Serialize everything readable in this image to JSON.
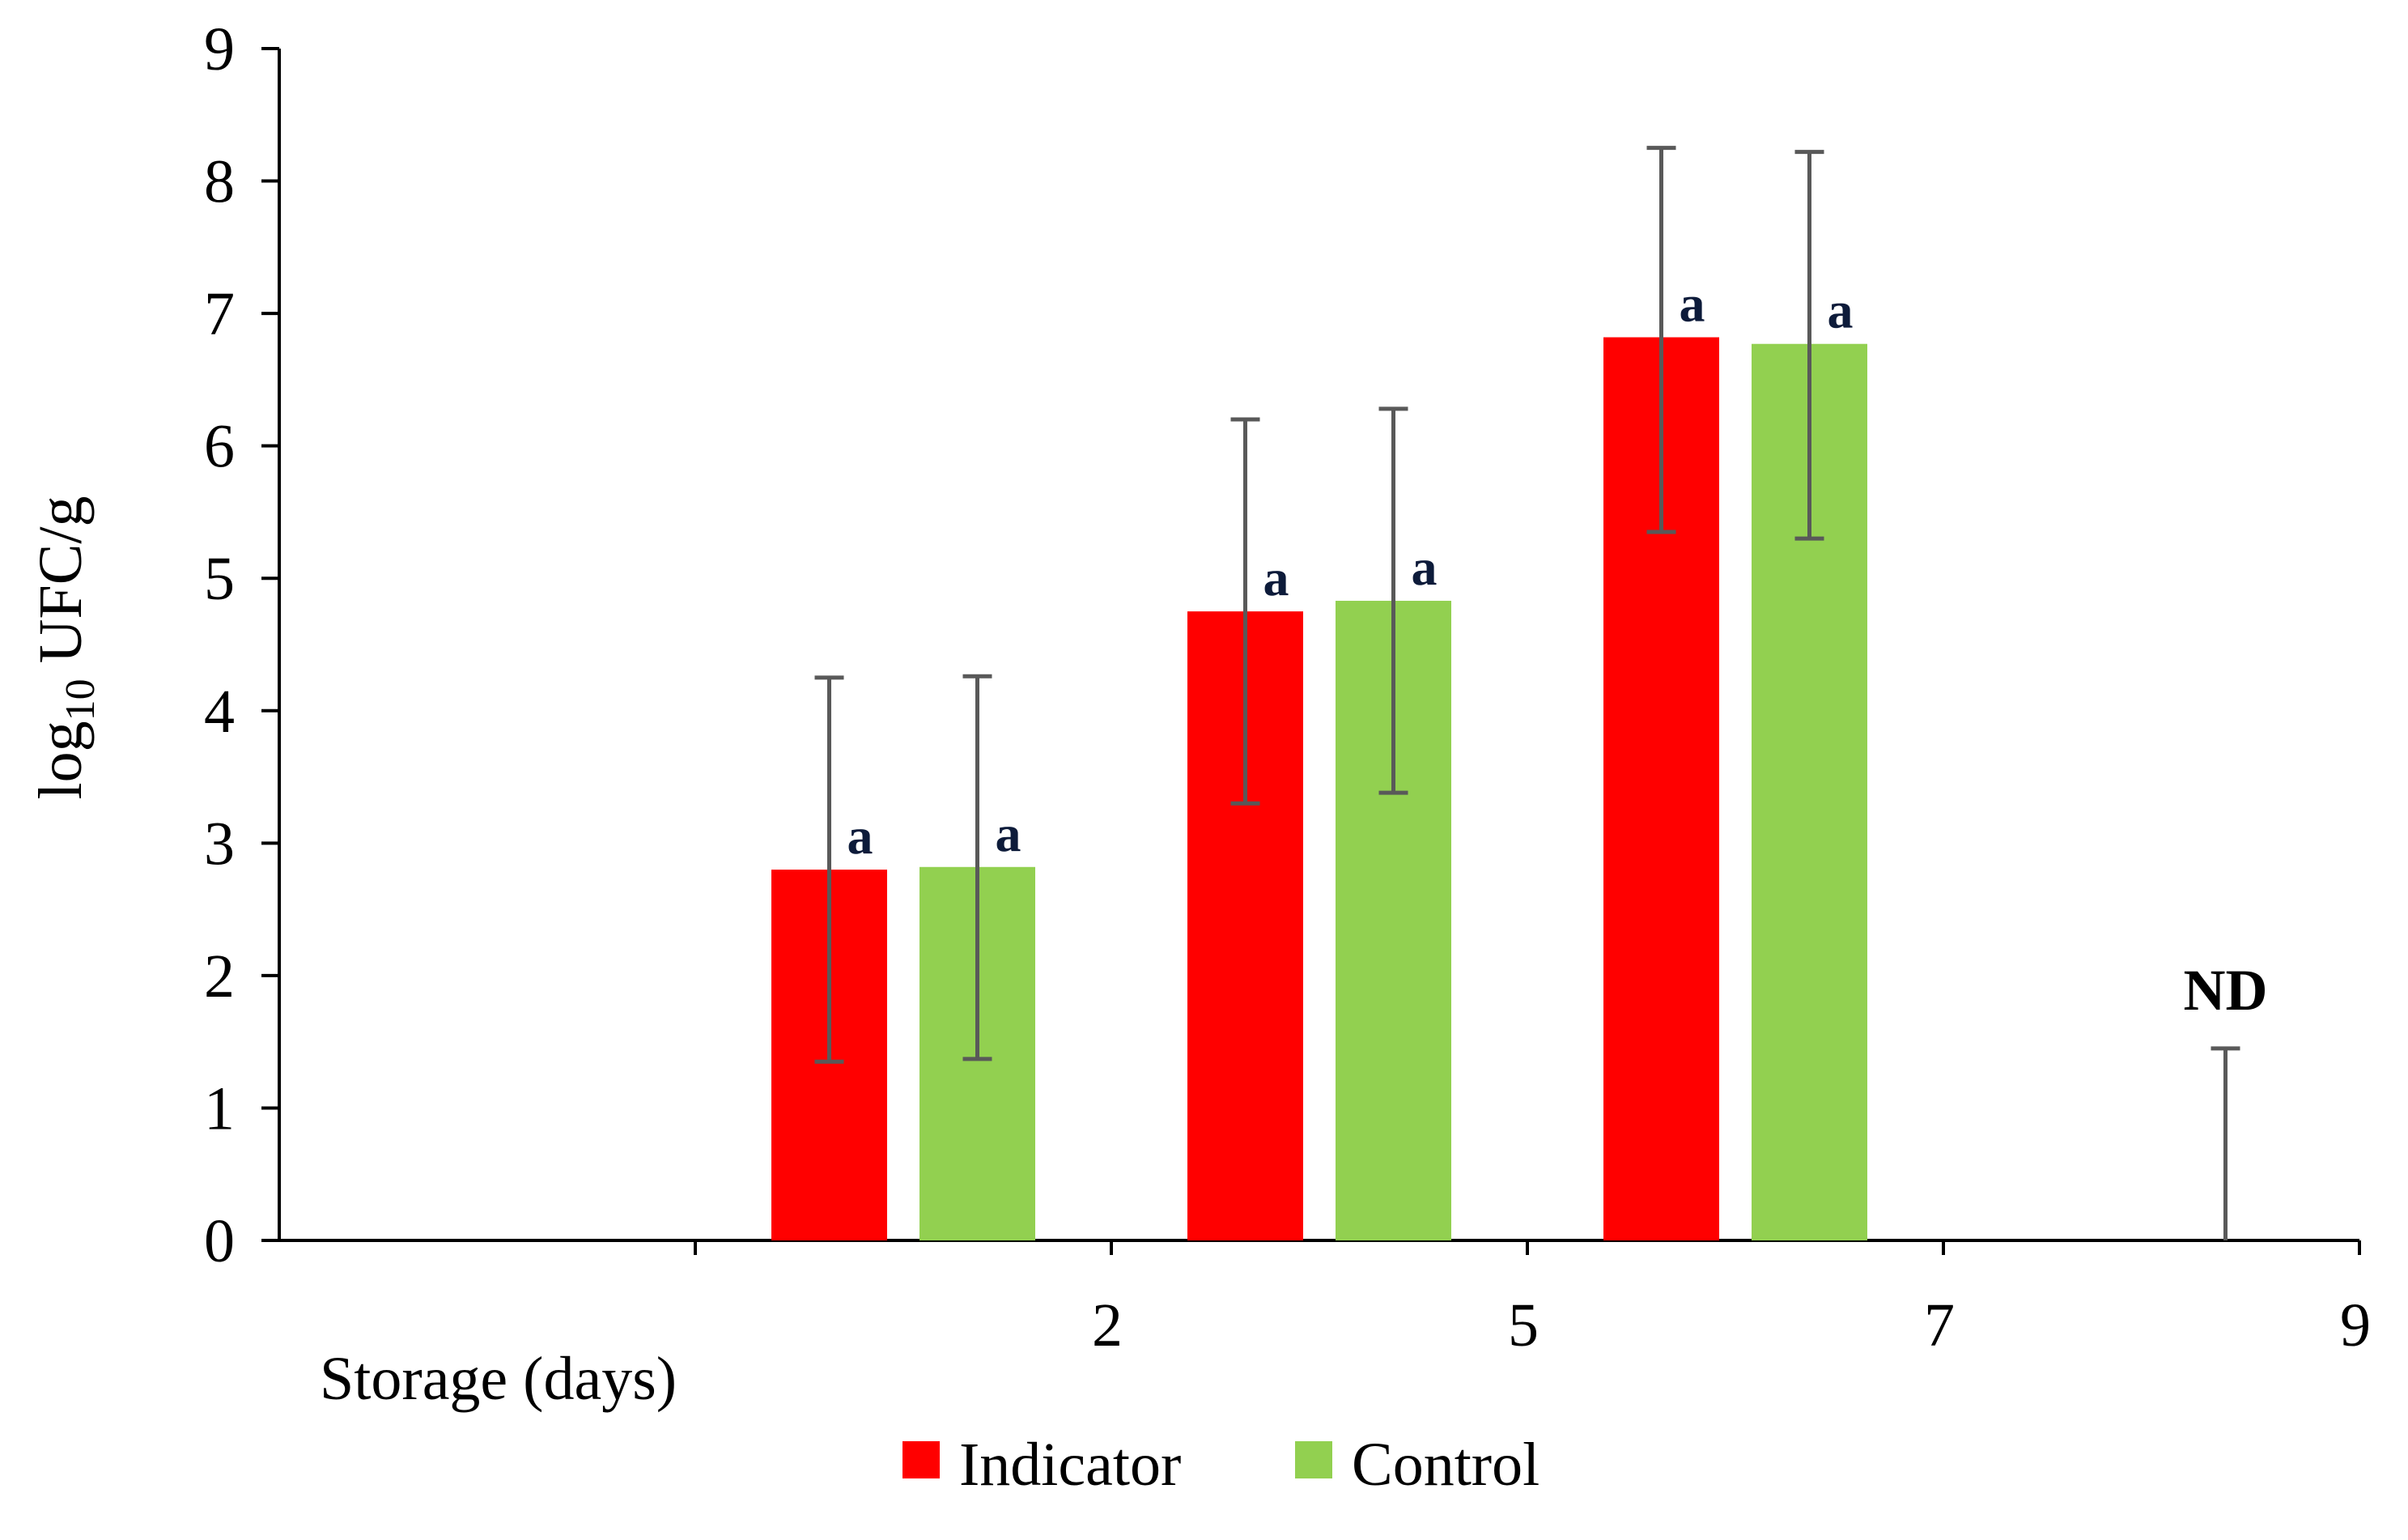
{
  "chart_data": {
    "type": "bar",
    "categories": [
      "",
      "2",
      "5",
      "7",
      "9"
    ],
    "xlabel": "Storage (days)",
    "ylabel_main": "log",
    "ylabel_sub": "10",
    "ylabel_rest": " UFC/g",
    "ylim": [
      0,
      9
    ],
    "yticks": [
      "0",
      "1",
      "2",
      "3",
      "4",
      "5",
      "6",
      "7",
      "8",
      "9"
    ],
    "grid": false,
    "legend_position": "bottom-center",
    "series": [
      {
        "name": "Indicator",
        "color": "#ff0000",
        "values": [
          null,
          2.8,
          4.75,
          6.82,
          null
        ],
        "error_low": [
          null,
          1.35,
          3.3,
          5.35,
          null
        ],
        "error_high": [
          null,
          4.25,
          6.2,
          8.25,
          null
        ],
        "labels": [
          "",
          "a",
          "a",
          "a",
          ""
        ]
      },
      {
        "name": "Control",
        "color": "#92d050",
        "values": [
          null,
          2.82,
          4.83,
          6.77,
          null
        ],
        "error_low": [
          null,
          1.37,
          3.38,
          5.3,
          null
        ],
        "error_high": [
          null,
          4.26,
          6.28,
          8.22,
          null
        ],
        "labels": [
          "",
          "a",
          "a",
          "a",
          ""
        ]
      }
    ],
    "annotations": [
      {
        "text": "ND",
        "category": "9",
        "error_high": 1.45
      }
    ]
  }
}
